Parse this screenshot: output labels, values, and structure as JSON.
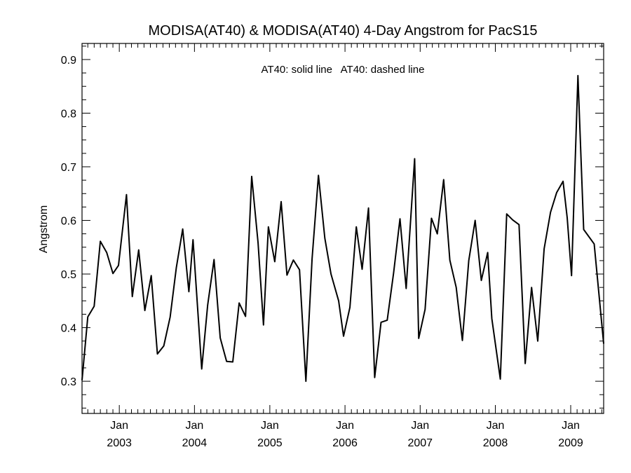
{
  "chart_data": {
    "type": "line",
    "title": "MODISA(AT40) & MODISA(AT40) 4-Day Angstrom for PacS15",
    "annotation": "AT40: solid line   AT40: dashed line",
    "xlabel": "",
    "ylabel": "Angstrom",
    "xlim": [
      "2002-07-04",
      "2009-06-10"
    ],
    "ylim": [
      0.24,
      0.93
    ],
    "y_ticks": [
      "0.3",
      "0.4",
      "0.5",
      "0.6",
      "0.7",
      "0.8",
      "0.9"
    ],
    "x_ticks": [
      {
        "month": "Jan",
        "year": "2003"
      },
      {
        "month": "Jan",
        "year": "2004"
      },
      {
        "month": "Jan",
        "year": "2005"
      },
      {
        "month": "Jan",
        "year": "2006"
      },
      {
        "month": "Jan",
        "year": "2007"
      },
      {
        "month": "Jan",
        "year": "2008"
      },
      {
        "month": "Jan",
        "year": "2009"
      }
    ],
    "grid": false,
    "series": [
      {
        "line_style": "solid",
        "color": "#000000",
        "points": [
          [
            "2002-07-04",
            0.302
          ],
          [
            "2002-08-01",
            0.42
          ],
          [
            "2002-09-01",
            0.44
          ],
          [
            "2002-10-01",
            0.561
          ],
          [
            "2002-11-01",
            0.54
          ],
          [
            "2002-12-01",
            0.501
          ],
          [
            "2002-12-28",
            0.516
          ],
          [
            "2003-02-05",
            0.648
          ],
          [
            "2003-03-05",
            0.458
          ],
          [
            "2003-04-05",
            0.545
          ],
          [
            "2003-05-05",
            0.432
          ],
          [
            "2003-06-05",
            0.497
          ],
          [
            "2003-07-05",
            0.351
          ],
          [
            "2003-08-05",
            0.366
          ],
          [
            "2003-09-05",
            0.42
          ],
          [
            "2003-10-05",
            0.512
          ],
          [
            "2003-11-05",
            0.584
          ],
          [
            "2003-12-05",
            0.467
          ],
          [
            "2003-12-25",
            0.564
          ],
          [
            "2004-02-05",
            0.323
          ],
          [
            "2004-03-05",
            0.442
          ],
          [
            "2004-04-05",
            0.527
          ],
          [
            "2004-05-05",
            0.381
          ],
          [
            "2004-06-05",
            0.337
          ],
          [
            "2004-07-05",
            0.336
          ],
          [
            "2004-08-05",
            0.446
          ],
          [
            "2004-09-05",
            0.421
          ],
          [
            "2004-10-05",
            0.682
          ],
          [
            "2004-11-05",
            0.558
          ],
          [
            "2004-12-01",
            0.405
          ],
          [
            "2004-12-25",
            0.588
          ],
          [
            "2005-01-25",
            0.523
          ],
          [
            "2005-02-25",
            0.635
          ],
          [
            "2005-03-25",
            0.498
          ],
          [
            "2005-04-25",
            0.526
          ],
          [
            "2005-05-25",
            0.508
          ],
          [
            "2005-06-25",
            0.3
          ],
          [
            "2005-07-25",
            0.528
          ],
          [
            "2005-08-25",
            0.684
          ],
          [
            "2005-09-25",
            0.567
          ],
          [
            "2005-10-25",
            0.5
          ],
          [
            "2005-12-01",
            0.45
          ],
          [
            "2005-12-25",
            0.384
          ],
          [
            "2006-01-25",
            0.438
          ],
          [
            "2006-02-25",
            0.588
          ],
          [
            "2006-03-25",
            0.509
          ],
          [
            "2006-04-25",
            0.623
          ],
          [
            "2006-05-25",
            0.307
          ],
          [
            "2006-06-25",
            0.41
          ],
          [
            "2006-07-25",
            0.414
          ],
          [
            "2006-08-25",
            0.502
          ],
          [
            "2006-09-25",
            0.603
          ],
          [
            "2006-10-25",
            0.473
          ],
          [
            "2006-12-05",
            0.715
          ],
          [
            "2006-12-25",
            0.38
          ],
          [
            "2007-01-25",
            0.434
          ],
          [
            "2007-02-25",
            0.604
          ],
          [
            "2007-03-25",
            0.575
          ],
          [
            "2007-04-25",
            0.676
          ],
          [
            "2007-05-25",
            0.526
          ],
          [
            "2007-06-25",
            0.475
          ],
          [
            "2007-07-25",
            0.376
          ],
          [
            "2007-08-25",
            0.525
          ],
          [
            "2007-09-25",
            0.6
          ],
          [
            "2007-10-25",
            0.488
          ],
          [
            "2007-11-25",
            0.54
          ],
          [
            "2007-12-15",
            0.417
          ],
          [
            "2008-01-25",
            0.304
          ],
          [
            "2008-02-25",
            0.612
          ],
          [
            "2008-03-25",
            0.601
          ],
          [
            "2008-04-25",
            0.592
          ],
          [
            "2008-05-25",
            0.333
          ],
          [
            "2008-06-25",
            0.475
          ],
          [
            "2008-07-25",
            0.375
          ],
          [
            "2008-08-25",
            0.547
          ],
          [
            "2008-09-25",
            0.615
          ],
          [
            "2008-10-25",
            0.652
          ],
          [
            "2008-11-25",
            0.673
          ],
          [
            "2008-12-15",
            0.605
          ],
          [
            "2009-01-05",
            0.497
          ],
          [
            "2009-02-05",
            0.87
          ],
          [
            "2009-03-05",
            0.583
          ],
          [
            "2009-04-25",
            0.556
          ],
          [
            "2009-06-10",
            0.37
          ]
        ]
      }
    ]
  }
}
